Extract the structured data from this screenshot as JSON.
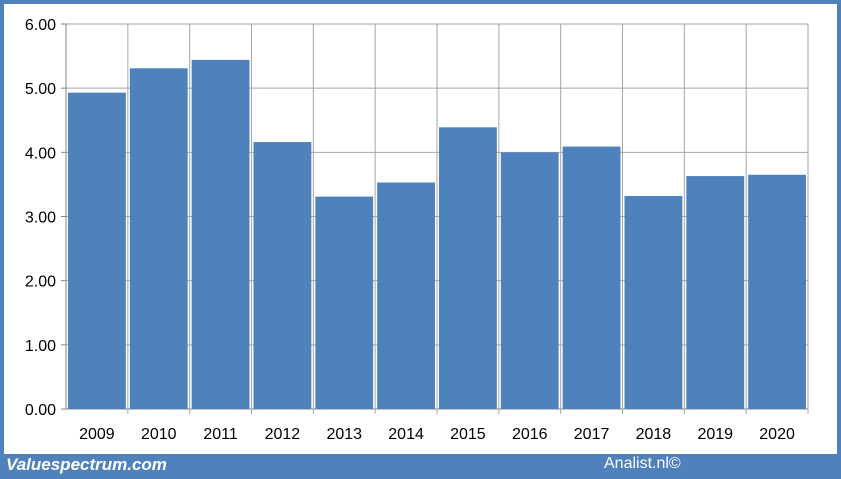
{
  "footer": {
    "brand": "Valuespectrum.com",
    "source": "Analist.nl©"
  },
  "colors": {
    "bar": "#4f81bd",
    "frame": "#4f81bd",
    "grid": "#a6a6a6",
    "axis": "#868686"
  },
  "chart_data": {
    "type": "bar",
    "categories": [
      "2009",
      "2010",
      "2011",
      "2012",
      "2013",
      "2014",
      "2015",
      "2016",
      "2017",
      "2018",
      "2019",
      "2020"
    ],
    "values": [
      4.93,
      5.31,
      5.44,
      4.16,
      3.31,
      3.53,
      4.39,
      4.0,
      4.09,
      3.32,
      3.63,
      3.65
    ],
    "yticks": [
      "0.00",
      "1.00",
      "2.00",
      "3.00",
      "4.00",
      "5.00",
      "6.00"
    ],
    "ylim": [
      0,
      6
    ],
    "grid": true,
    "legend": "none"
  }
}
